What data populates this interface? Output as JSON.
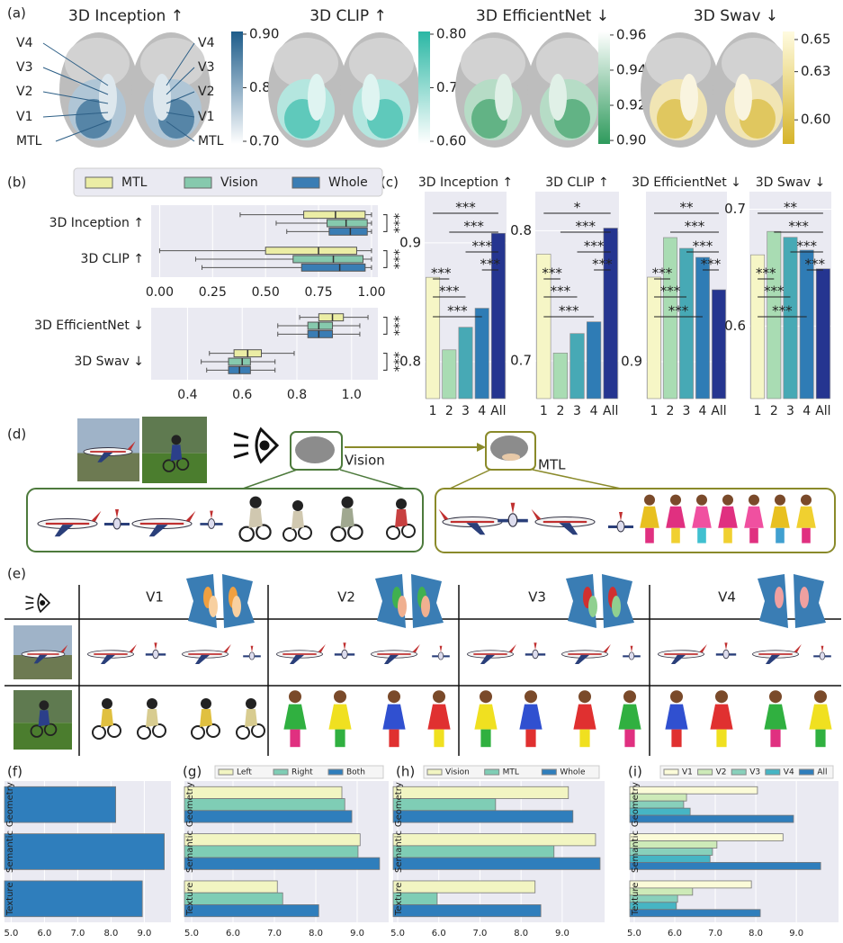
{
  "panel_labels": [
    "(a)",
    "(b)",
    "(c)",
    "(d)",
    "(e)",
    "(f)",
    "(g)",
    "(h)",
    "(i)"
  ],
  "brain_maps": [
    {
      "title": "3D Inception ↑",
      "colors": [
        "#ffffff",
        "#1d5c8a"
      ],
      "lim": [
        0.695,
        0.905
      ],
      "ticks": [
        {
          "value": 0.9,
          "label": "0.90"
        },
        {
          "value": 0.8,
          "label": "0.80"
        },
        {
          "value": 0.7,
          "label": "0.70"
        }
      ]
    },
    {
      "title": "3D CLIP ↑",
      "colors": [
        "#ffffff",
        "#2ab7a4"
      ],
      "lim": [
        0.595,
        0.805
      ],
      "ticks": [
        {
          "value": 0.8,
          "label": "0.80"
        },
        {
          "value": 0.7,
          "label": "0.70"
        },
        {
          "value": 0.6,
          "label": "0.60"
        }
      ]
    },
    {
      "title": "3D EfficientNet ↓",
      "colors": [
        "#2e9a5c",
        "#ffffff"
      ],
      "lim": [
        0.898,
        0.962
      ],
      "ticks": [
        0.96,
        0.94,
        0.92,
        {
          "value": 0.9,
          "label": "0.90"
        }
      ]
    },
    {
      "title": "3D Swav ↓",
      "colors": [
        "#d6b42a",
        "#fffbe0"
      ],
      "lim": [
        0.585,
        0.655
      ],
      "ticks": [
        0.65,
        0.63,
        {
          "value": 0.6,
          "label": "0.60"
        }
      ]
    }
  ],
  "regions": [
    "V4",
    "V3",
    "V2",
    "V1",
    "MTL"
  ],
  "diagram": {
    "vision": "Vision",
    "mtl": "MTL"
  },
  "layer_columns": [
    "V1",
    "V2",
    "V3",
    "V4"
  ],
  "chart_data": [
    {
      "type": "box",
      "series": [
        {
          "name": "MTL",
          "color": "#ebeda5"
        },
        {
          "name": "Vision",
          "color": "#86c9ad"
        },
        {
          "name": "Whole",
          "color": "#3a7db4"
        }
      ],
      "panels": [
        {
          "categories": [
            "3D Inception ↑",
            "3D CLIP ↑"
          ],
          "xlim": [
            -0.04,
            1.03
          ],
          "xticks": [
            {
              "value": 0,
              "label": "0.00"
            },
            0.25,
            {
              "value": 0.5,
              "label": "0.50"
            },
            0.75,
            {
              "value": 1,
              "label": "1.00"
            }
          ],
          "stats": [
            [
              [
                0.38,
                0.68,
                0.83,
                0.97,
                1.0
              ],
              [
                0.55,
                0.79,
                0.88,
                0.98,
                1.0
              ],
              [
                0.6,
                0.8,
                0.9,
                0.98,
                1.0
              ]
            ],
            [
              [
                0.0,
                0.5,
                0.75,
                0.93,
                1.0
              ],
              [
                0.17,
                0.63,
                0.82,
                0.96,
                1.0
              ],
              [
                0.2,
                0.67,
                0.85,
                0.97,
                1.0
              ]
            ]
          ],
          "annotations": [
            "***",
            "***"
          ]
        },
        {
          "categories": [
            "3D EfficientNet ↓",
            "3D Swav ↓"
          ],
          "xlim": [
            0.267,
            1.096
          ],
          "xticks": [
            0.4,
            0.6,
            0.8,
            {
              "value": 1,
              "label": "1.0"
            }
          ],
          "stats": [
            [
              [
                0.81,
                0.88,
                0.93,
                0.97,
                1.06
              ],
              [
                0.73,
                0.84,
                0.88,
                0.93,
                1.03
              ],
              [
                0.73,
                0.84,
                0.88,
                0.93,
                1.03
              ]
            ],
            [
              [
                0.48,
                0.57,
                0.62,
                0.67,
                0.79
              ],
              [
                0.45,
                0.55,
                0.6,
                0.63,
                0.72
              ],
              [
                0.47,
                0.55,
                0.59,
                0.63,
                0.72
              ]
            ]
          ],
          "annotations": [
            "***",
            "***"
          ]
        }
      ]
    },
    {
      "type": "bar",
      "title": "3D Inception ↑",
      "categories": [
        "1",
        "2",
        "3",
        "4",
        "All"
      ],
      "values": [
        0.871,
        0.81,
        0.829,
        0.845,
        0.908
      ],
      "colors": [
        "#f6f6c6",
        "#a9dcb3",
        "#47a9b5",
        "#2f7cb5",
        "#253590"
      ],
      "ylim": [
        0.769,
        0.943
      ],
      "yticks": [
        0.8,
        0.9
      ],
      "annotations": [
        "***",
        "***",
        "***",
        "***",
        "***",
        "***",
        "***"
      ]
    },
    {
      "type": "bar",
      "title": "3D CLIP ↑",
      "categories": [
        "1",
        "2",
        "3",
        "4",
        "All"
      ],
      "values": [
        0.782,
        0.706,
        0.721,
        0.73,
        0.802
      ],
      "colors": [
        "#f6f6c6",
        "#a9dcb3",
        "#47a9b5",
        "#2f7cb5",
        "#253590"
      ],
      "ylim": [
        0.671,
        0.83
      ],
      "yticks": [
        0.7,
        0.8
      ],
      "annotations": [
        "*",
        "***",
        "***",
        "***",
        "***",
        "***",
        "***"
      ]
    },
    {
      "type": "bar",
      "title": "3D EfficientNet ↓",
      "categories": [
        "1",
        "2",
        "3",
        "4",
        "All"
      ],
      "values": [
        0.947,
        0.969,
        0.963,
        0.958,
        0.94
      ],
      "colors": [
        "#f6f6c6",
        "#a9dcb3",
        "#47a9b5",
        "#2f7cb5",
        "#253590"
      ],
      "ylim": [
        0.8795,
        0.9945
      ],
      "yticks": [
        0.9
      ],
      "annotations": [
        "**",
        "***",
        "***",
        "***",
        "***",
        "***",
        "***"
      ]
    },
    {
      "type": "bar",
      "title": "3D Swav ↓",
      "categories": [
        "1",
        "2",
        "3",
        "4",
        "All"
      ],
      "values": [
        0.661,
        0.681,
        0.676,
        0.665,
        0.649
      ],
      "colors": [
        "#f6f6c6",
        "#a9dcb3",
        "#47a9b5",
        "#2f7cb5",
        "#253590"
      ],
      "ylim": [
        0.538,
        0.715
      ],
      "yticks": [
        0.6,
        0.7
      ],
      "annotations": [
        "**",
        "***",
        "***",
        "***",
        "***",
        "***",
        "***"
      ]
    },
    {
      "type": "barh",
      "categories": [
        "Geometry",
        "Semantic",
        "Texture"
      ],
      "values": [
        8.14,
        9.6,
        8.94
      ],
      "color": "#2f7ebc",
      "xlim": [
        4.8,
        9.8
      ],
      "xticks": [
        {
          "value": 5,
          "label": "5.0"
        },
        {
          "value": 6,
          "label": "6.0"
        },
        {
          "value": 7,
          "label": "7.0"
        },
        {
          "value": 8,
          "label": "8.0"
        },
        {
          "value": 9,
          "label": "9.0"
        }
      ]
    },
    {
      "type": "barh",
      "categories": [
        "Geometry",
        "Semantic",
        "Texture"
      ],
      "series": [
        {
          "name": "Left",
          "color": "#f2f5c2",
          "values": [
            8.63,
            9.07,
            7.07
          ]
        },
        {
          "name": "Right",
          "color": "#7fcdb5",
          "values": [
            8.7,
            9.02,
            7.2
          ]
        },
        {
          "name": "Both",
          "color": "#2f7ebc",
          "values": [
            8.87,
            9.54,
            8.07
          ]
        }
      ],
      "xlim": [
        4.826,
        9.76
      ],
      "xticks": [
        {
          "value": 5,
          "label": "5.0"
        },
        {
          "value": 6,
          "label": "6.0"
        },
        {
          "value": 7,
          "label": "7.0"
        },
        {
          "value": 8,
          "label": "8.0"
        },
        {
          "value": 9,
          "label": "9.0"
        }
      ]
    },
    {
      "type": "barh",
      "categories": [
        "Geometry",
        "Semantic",
        "Texture"
      ],
      "series": [
        {
          "name": "Vision",
          "color": "#f2f5c2",
          "values": [
            9.15,
            9.81,
            8.34
          ]
        },
        {
          "name": "MTL",
          "color": "#7fcdb5",
          "values": [
            7.38,
            8.8,
            5.96
          ]
        },
        {
          "name": "Whole",
          "color": "#2f7ebc",
          "values": [
            9.26,
            9.92,
            8.48
          ]
        }
      ],
      "xlim": [
        4.89,
        10.03
      ],
      "xticks": [
        {
          "value": 5,
          "label": "5.0"
        },
        {
          "value": 6,
          "label": "6.0"
        },
        {
          "value": 7,
          "label": "7.0"
        },
        {
          "value": 8,
          "label": "8.0"
        },
        {
          "value": 9,
          "label": "9.0"
        }
      ]
    },
    {
      "type": "barh",
      "categories": [
        "Geometry",
        "Semantic",
        "Texture"
      ],
      "series": [
        {
          "name": "V1",
          "color": "#fbfbd8",
          "values": [
            8.04,
            8.67,
            7.89
          ]
        },
        {
          "name": "V2",
          "color": "#cdeab8",
          "values": [
            6.29,
            7.04,
            6.44
          ]
        },
        {
          "name": "V3",
          "color": "#88d0bb",
          "values": [
            6.22,
            6.93,
            6.07
          ]
        },
        {
          "name": "V4",
          "color": "#46b5c4",
          "values": [
            6.38,
            6.87,
            6.04
          ]
        },
        {
          "name": "All",
          "color": "#2f7ebc",
          "values": [
            8.93,
            9.6,
            8.11
          ]
        }
      ],
      "xlim": [
        4.89,
        10.04
      ],
      "xticks": [
        {
          "value": 5,
          "label": "5.0"
        },
        {
          "value": 6,
          "label": "6.0"
        },
        {
          "value": 7,
          "label": "7.0"
        },
        {
          "value": 8,
          "label": "8.0"
        },
        {
          "value": 9,
          "label": "9.0"
        }
      ]
    }
  ]
}
